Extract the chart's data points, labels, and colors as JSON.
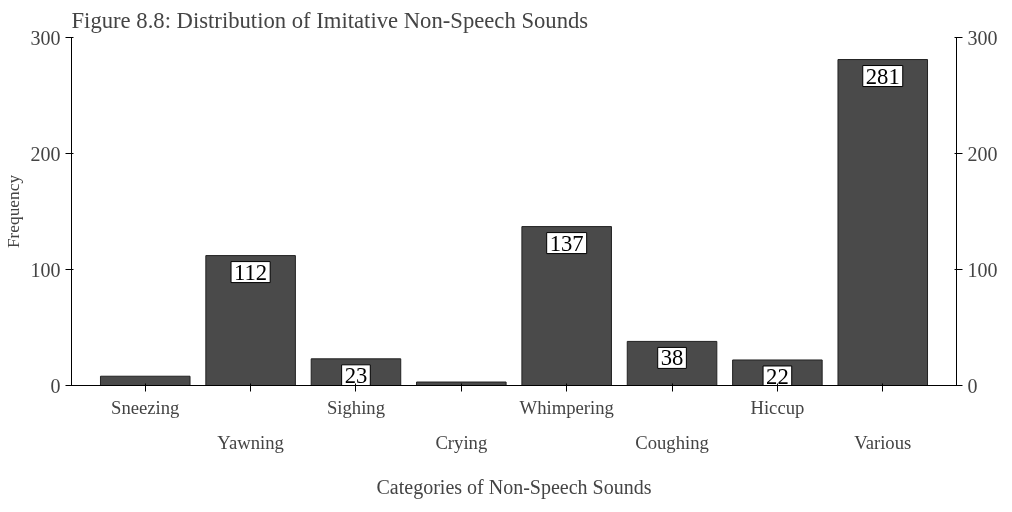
{
  "chart_data": {
    "type": "bar",
    "title": "Figure 8.8: Distribution of Imitative Non-Speech Sounds",
    "xlabel": "Categories of Non-Speech Sounds",
    "ylabel": "Frequency",
    "categories": [
      "Sneezing",
      "Yawning",
      "Sighing",
      "Crying",
      "Whimpering",
      "Coughing",
      "Hiccup",
      "Various"
    ],
    "values": [
      8,
      112,
      23,
      3,
      137,
      38,
      22,
      281
    ],
    "value_labels": [
      null,
      "112",
      "23",
      null,
      "137",
      "38",
      "22",
      "281"
    ],
    "color": "#4a4a4a",
    "ylim": [
      0,
      300
    ],
    "yticks": [
      0,
      100,
      200,
      300
    ],
    "y2lim": [
      0,
      300
    ],
    "y2ticks": [
      0,
      100,
      200,
      300
    ],
    "grid": false
  }
}
